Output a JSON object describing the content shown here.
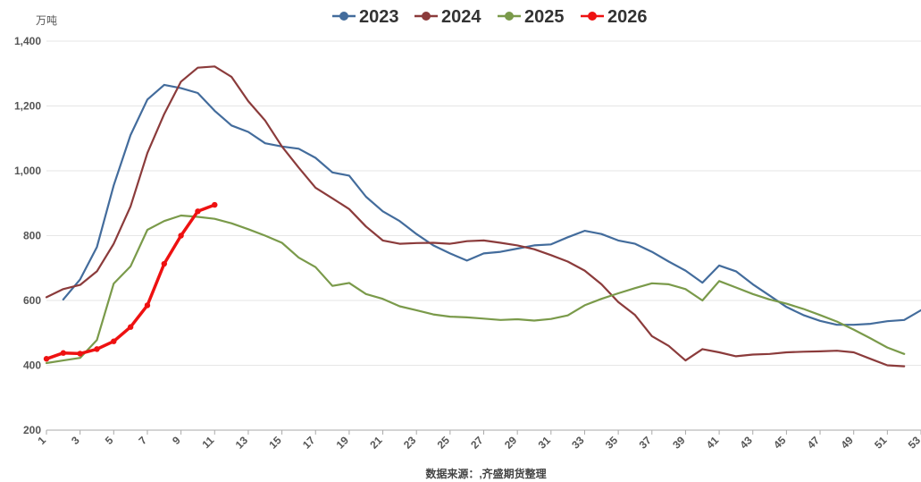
{
  "chart_data": {
    "type": "line",
    "title": "",
    "ylabel": "万吨",
    "xlabel": "",
    "ylim": [
      200,
      1400
    ],
    "xlim": [
      1,
      53
    ],
    "y_ticks": [
      200,
      400,
      600,
      800,
      1000,
      1200,
      1400
    ],
    "y_tick_labels": [
      "200",
      "400",
      "600",
      "800",
      "1,000",
      "1,200",
      "1,400"
    ],
    "x_ticks": [
      1,
      3,
      5,
      7,
      9,
      11,
      13,
      15,
      17,
      19,
      21,
      23,
      25,
      27,
      29,
      31,
      33,
      35,
      37,
      39,
      41,
      43,
      45,
      47,
      49,
      51,
      53
    ],
    "x_tick_labels": [
      "1",
      "3",
      "5",
      "7",
      "9",
      "11",
      "13",
      "15",
      "17",
      "19",
      "21",
      "23",
      "25",
      "27",
      "29",
      "31",
      "33",
      "35",
      "37",
      "39",
      "41",
      "43",
      "45",
      "47",
      "49",
      "51",
      "53"
    ],
    "grid": "horizontal",
    "legend_position": "top-center",
    "source": "数据来源：,齐盛期货整理",
    "series": [
      {
        "name": "2023",
        "color": "#436c9c",
        "marker": false,
        "x": [
          2,
          3,
          4,
          5,
          6,
          7,
          8,
          9,
          10,
          11,
          12,
          13,
          14,
          15,
          16,
          17,
          18,
          19,
          20,
          21,
          22,
          23,
          24,
          25,
          26,
          27,
          28,
          29,
          30,
          31,
          32,
          33,
          34,
          35,
          36,
          37,
          38,
          39,
          40,
          41,
          42,
          43,
          44,
          45,
          46,
          47,
          48,
          49,
          50,
          51,
          52,
          53
        ],
        "values": [
          603,
          665,
          765,
          955,
          1110,
          1220,
          1265,
          1255,
          1240,
          1185,
          1140,
          1120,
          1085,
          1075,
          1068,
          1040,
          995,
          985,
          920,
          875,
          845,
          805,
          770,
          745,
          723,
          745,
          750,
          760,
          770,
          773,
          795,
          815,
          805,
          785,
          775,
          750,
          720,
          692,
          655,
          708,
          690,
          650,
          615,
          580,
          555,
          537,
          525,
          525,
          528,
          536,
          540,
          570
        ]
      },
      {
        "name": "2024",
        "color": "#8b3b3b",
        "marker": false,
        "x": [
          1,
          2,
          3,
          4,
          5,
          6,
          7,
          8,
          9,
          10,
          11,
          12,
          13,
          14,
          15,
          16,
          17,
          18,
          19,
          20,
          21,
          22,
          23,
          24,
          25,
          26,
          27,
          28,
          29,
          30,
          31,
          32,
          33,
          34,
          35,
          36,
          37,
          38,
          39,
          40,
          41,
          42,
          43,
          44,
          45,
          46,
          47,
          48,
          49,
          50,
          51,
          52
        ],
        "values": [
          610,
          635,
          648,
          690,
          775,
          890,
          1055,
          1175,
          1275,
          1318,
          1322,
          1290,
          1215,
          1155,
          1075,
          1010,
          948,
          915,
          882,
          828,
          785,
          775,
          777,
          778,
          775,
          783,
          785,
          778,
          770,
          758,
          740,
          720,
          692,
          650,
          595,
          555,
          490,
          460,
          415,
          450,
          440,
          428,
          433,
          435,
          440,
          442,
          443,
          445,
          440,
          420,
          400,
          397
        ]
      },
      {
        "name": "2025",
        "color": "#7a9a4a",
        "marker": false,
        "x": [
          1,
          2,
          3,
          4,
          5,
          6,
          7,
          8,
          9,
          10,
          11,
          12,
          13,
          14,
          15,
          16,
          17,
          18,
          19,
          20,
          21,
          22,
          23,
          24,
          25,
          26,
          27,
          28,
          29,
          30,
          31,
          32,
          33,
          34,
          35,
          36,
          37,
          38,
          39,
          40,
          41,
          42,
          43,
          44,
          45,
          46,
          47,
          48,
          49,
          50,
          51,
          52
        ],
        "values": [
          407,
          415,
          423,
          478,
          652,
          705,
          818,
          845,
          862,
          858,
          852,
          838,
          820,
          800,
          778,
          732,
          703,
          645,
          654,
          620,
          605,
          582,
          570,
          557,
          550,
          548,
          544,
          540,
          542,
          538,
          543,
          554,
          585,
          605,
          622,
          638,
          653,
          650,
          635,
          600,
          660,
          640,
          620,
          603,
          590,
          574,
          555,
          535,
          510,
          483,
          455,
          435
        ]
      },
      {
        "name": "2026",
        "color": "#ee1111",
        "marker": true,
        "x": [
          1,
          2,
          3,
          4,
          5,
          6,
          7,
          8,
          9,
          10,
          11
        ],
        "values": [
          420,
          438,
          436,
          450,
          474,
          518,
          585,
          713,
          800,
          875,
          895
        ]
      }
    ]
  }
}
